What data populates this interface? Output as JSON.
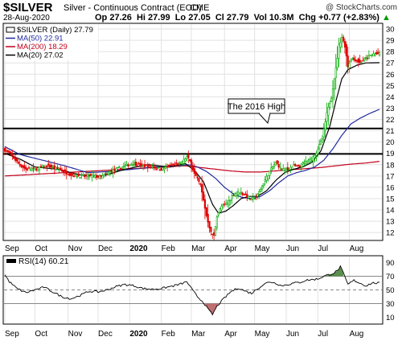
{
  "header": {
    "symbol": "$SILVER",
    "description": "Silver - Continuous Contract (EOD)",
    "exchange": "CME",
    "brand": "@ StockCharts.com",
    "date": "28-Aug-2020",
    "open": "Op 27.26",
    "high": "Hi 27.99",
    "low": "Lo 27.05",
    "close": "Cl 27.79",
    "volume": "Vol 10.3M",
    "change": "Chg +0.77 (+2.83%)",
    "change_arrow": "▲"
  },
  "legend": [
    {
      "label": "$SILVER (Daily) 27.79",
      "color": "#000000",
      "swatch": "price"
    },
    {
      "label": "MA(50) 22.91",
      "color": "#1f2a9e",
      "swatch": "line"
    },
    {
      "label": "MA(200) 18.29",
      "color": "#c0001a",
      "swatch": "line"
    },
    {
      "label": "MA(20) 27.02",
      "color": "#000000",
      "swatch": "line"
    }
  ],
  "annotation": "The 2016 High",
  "rsi_label": "RSI(14) 60.21",
  "colors": {
    "up": "#00aa00",
    "down": "#e00000",
    "ma50": "#1f2a9e",
    "ma200": "#c0001a",
    "ma20": "#000000",
    "rsi_fill_high": "#5a8f4e",
    "rsi_fill_low": "#c07070"
  },
  "chart_data": [
    {
      "type": "candlestick",
      "title": "$SILVER (Daily)",
      "ylim": [
        11.3,
        30.5
      ],
      "yticks": [
        12,
        13,
        14,
        15,
        16,
        17,
        18,
        19,
        20,
        21,
        22,
        23,
        24,
        25,
        26,
        27,
        28,
        29,
        30
      ],
      "x_labels": [
        "Sep",
        "Oct",
        "Nov",
        "Dec",
        "2020",
        "Feb",
        "Mar",
        "Apr",
        "May",
        "Jun",
        "Jul",
        "Aug"
      ],
      "x_label_positions": [
        0,
        20,
        42,
        62,
        83,
        104,
        124,
        146,
        166,
        187,
        208,
        229
      ],
      "bar_count": 250,
      "horizontal_lines": [
        21.2,
        18.95
      ],
      "price_anchors": [
        [
          0,
          19.3
        ],
        [
          4,
          18.9
        ],
        [
          9,
          18.1
        ],
        [
          14,
          17.6
        ],
        [
          20,
          17.6
        ],
        [
          28,
          17.9
        ],
        [
          36,
          17.6
        ],
        [
          44,
          17.1
        ],
        [
          50,
          17.0
        ],
        [
          58,
          17.0
        ],
        [
          64,
          16.9
        ],
        [
          70,
          17.4
        ],
        [
          78,
          17.8
        ],
        [
          85,
          18.1
        ],
        [
          92,
          17.9
        ],
        [
          98,
          17.8
        ],
        [
          104,
          17.6
        ],
        [
          110,
          17.9
        ],
        [
          117,
          18.1
        ],
        [
          121,
          18.7
        ],
        [
          123,
          18.3
        ],
        [
          126,
          17.2
        ],
        [
          130,
          16.2
        ],
        [
          134,
          13.5
        ],
        [
          137,
          12.0
        ],
        [
          139,
          11.7
        ],
        [
          141,
          13.5
        ],
        [
          144,
          14.3
        ],
        [
          148,
          14.6
        ],
        [
          152,
          15.4
        ],
        [
          156,
          15.6
        ],
        [
          160,
          15.3
        ],
        [
          164,
          14.9
        ],
        [
          168,
          15.3
        ],
        [
          172,
          16.4
        ],
        [
          176,
          17.4
        ],
        [
          180,
          18.2
        ],
        [
          184,
          17.6
        ],
        [
          188,
          17.6
        ],
        [
          192,
          17.9
        ],
        [
          196,
          17.8
        ],
        [
          200,
          18.3
        ],
        [
          204,
          18.5
        ],
        [
          207,
          19.1
        ],
        [
          211,
          20.3
        ],
        [
          214,
          22.5
        ],
        [
          217,
          24.0
        ],
        [
          220,
          26.5
        ],
        [
          222,
          28.5
        ],
        [
          224,
          29.3
        ],
        [
          226,
          28.5
        ],
        [
          228,
          26.7
        ],
        [
          230,
          27.3
        ],
        [
          233,
          27.3
        ],
        [
          236,
          27.0
        ],
        [
          240,
          27.4
        ],
        [
          245,
          27.8
        ],
        [
          249,
          27.8
        ]
      ],
      "ma50_anchors": [
        [
          0,
          19.6
        ],
        [
          10,
          18.9
        ],
        [
          25,
          18.4
        ],
        [
          40,
          17.9
        ],
        [
          55,
          17.3
        ],
        [
          70,
          17.4
        ],
        [
          85,
          17.6
        ],
        [
          100,
          17.8
        ],
        [
          115,
          17.9
        ],
        [
          122,
          18.0
        ],
        [
          128,
          17.8
        ],
        [
          134,
          17.4
        ],
        [
          140,
          16.8
        ],
        [
          146,
          16.0
        ],
        [
          152,
          15.4
        ],
        [
          158,
          15.1
        ],
        [
          164,
          15.0
        ],
        [
          170,
          15.2
        ],
        [
          176,
          15.7
        ],
        [
          182,
          16.4
        ],
        [
          188,
          17.0
        ],
        [
          194,
          17.3
        ],
        [
          200,
          17.5
        ],
        [
          206,
          17.8
        ],
        [
          212,
          18.4
        ],
        [
          218,
          19.4
        ],
        [
          224,
          20.6
        ],
        [
          230,
          21.6
        ],
        [
          236,
          22.1
        ],
        [
          242,
          22.5
        ],
        [
          249,
          22.9
        ]
      ],
      "ma200_anchors": [
        [
          0,
          17.0
        ],
        [
          20,
          17.15
        ],
        [
          40,
          17.3
        ],
        [
          60,
          17.45
        ],
        [
          80,
          17.6
        ],
        [
          100,
          17.75
        ],
        [
          120,
          17.9
        ],
        [
          130,
          17.75
        ],
        [
          140,
          17.6
        ],
        [
          150,
          17.45
        ],
        [
          160,
          17.35
        ],
        [
          170,
          17.35
        ],
        [
          180,
          17.45
        ],
        [
          190,
          17.55
        ],
        [
          200,
          17.65
        ],
        [
          210,
          17.75
        ],
        [
          220,
          17.9
        ],
        [
          230,
          18.05
        ],
        [
          240,
          18.15
        ],
        [
          249,
          18.29
        ]
      ],
      "ma20_anchors": [
        [
          0,
          19.0
        ],
        [
          10,
          18.5
        ],
        [
          20,
          17.8
        ],
        [
          35,
          17.6
        ],
        [
          50,
          17.1
        ],
        [
          65,
          17.0
        ],
        [
          80,
          17.6
        ],
        [
          95,
          18.0
        ],
        [
          110,
          17.8
        ],
        [
          120,
          18.1
        ],
        [
          126,
          17.5
        ],
        [
          132,
          16.5
        ],
        [
          138,
          14.5
        ],
        [
          142,
          13.7
        ],
        [
          147,
          13.9
        ],
        [
          152,
          14.4
        ],
        [
          157,
          15.0
        ],
        [
          162,
          15.2
        ],
        [
          168,
          15.2
        ],
        [
          174,
          15.7
        ],
        [
          180,
          16.6
        ],
        [
          186,
          17.3
        ],
        [
          192,
          17.6
        ],
        [
          198,
          17.8
        ],
        [
          204,
          18.2
        ],
        [
          210,
          19.2
        ],
        [
          216,
          21.4
        ],
        [
          220,
          23.6
        ],
        [
          224,
          25.6
        ],
        [
          228,
          26.4
        ],
        [
          234,
          26.8
        ],
        [
          240,
          27.0
        ],
        [
          249,
          27.02
        ]
      ]
    },
    {
      "type": "line",
      "title": "RSI(14)",
      "ylim": [
        0,
        100
      ],
      "yticks": [
        10,
        30,
        50,
        70,
        90
      ],
      "threshold_lines": [
        70,
        30
      ],
      "mid_line": 50,
      "rsi_anchors": [
        [
          0,
          72
        ],
        [
          3,
          62
        ],
        [
          8,
          52
        ],
        [
          14,
          46
        ],
        [
          20,
          50
        ],
        [
          26,
          54
        ],
        [
          32,
          47
        ],
        [
          38,
          40
        ],
        [
          44,
          37
        ],
        [
          50,
          42
        ],
        [
          56,
          48
        ],
        [
          62,
          47
        ],
        [
          68,
          50
        ],
        [
          74,
          55
        ],
        [
          80,
          58
        ],
        [
          86,
          56
        ],
        [
          92,
          52
        ],
        [
          98,
          51
        ],
        [
          104,
          52
        ],
        [
          110,
          55
        ],
        [
          116,
          58
        ],
        [
          121,
          62
        ],
        [
          124,
          52
        ],
        [
          128,
          40
        ],
        [
          132,
          32
        ],
        [
          135,
          22
        ],
        [
          138,
          14
        ],
        [
          141,
          26
        ],
        [
          145,
          36
        ],
        [
          150,
          47
        ],
        [
          155,
          53
        ],
        [
          160,
          48
        ],
        [
          164,
          45
        ],
        [
          168,
          52
        ],
        [
          172,
          58
        ],
        [
          176,
          62
        ],
        [
          180,
          60
        ],
        [
          184,
          56
        ],
        [
          188,
          58
        ],
        [
          192,
          60
        ],
        [
          196,
          61
        ],
        [
          200,
          64
        ],
        [
          204,
          65
        ],
        [
          208,
          66
        ],
        [
          212,
          70
        ],
        [
          215,
          72
        ],
        [
          218,
          74
        ],
        [
          221,
          78
        ],
        [
          223,
          84
        ],
        [
          225,
          74
        ],
        [
          228,
          58
        ],
        [
          232,
          64
        ],
        [
          236,
          60
        ],
        [
          240,
          56
        ],
        [
          244,
          60
        ],
        [
          249,
          60
        ]
      ]
    }
  ]
}
